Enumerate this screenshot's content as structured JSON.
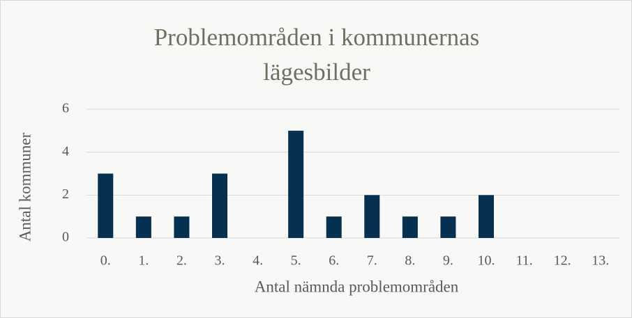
{
  "chart_data": {
    "type": "bar",
    "title": "Problemområden i kommunernas lägesbilder",
    "x_label": "Antal nämnda problemområden",
    "y_label": "Antal kommuner",
    "categories": [
      "0.",
      "1.",
      "2.",
      "3.",
      "4.",
      "5.",
      "6.",
      "7.",
      "8.",
      "9.",
      "10.",
      "11.",
      "12.",
      "13."
    ],
    "values": [
      3,
      1,
      1,
      3,
      0,
      5,
      1,
      2,
      1,
      1,
      2,
      0,
      0,
      0
    ],
    "color": "#06304f",
    "ylim": [
      0,
      6
    ],
    "yticks": [
      0,
      2,
      4,
      6
    ],
    "grid": true
  }
}
